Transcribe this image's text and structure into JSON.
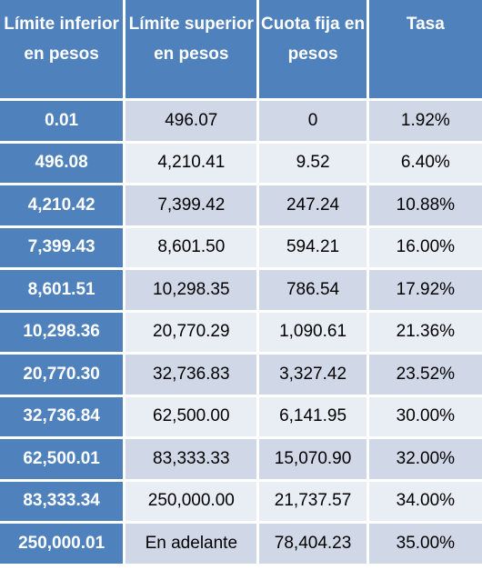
{
  "table": {
    "headers": [
      "Límite inferior en pesos",
      "Límite superior en pesos",
      "Cuota fija en pesos",
      "Tasa"
    ],
    "rows": [
      {
        "inferior": "0.01",
        "superior": "496.07",
        "cuota": "0",
        "tasa": "1.92%"
      },
      {
        "inferior": "496.08",
        "superior": "4,210.41",
        "cuota": "9.52",
        "tasa": "6.40%"
      },
      {
        "inferior": "4,210.42",
        "superior": "7,399.42",
        "cuota": "247.24",
        "tasa": "10.88%"
      },
      {
        "inferior": "7,399.43",
        "superior": "8,601.50",
        "cuota": "594.21",
        "tasa": "16.00%"
      },
      {
        "inferior": "8,601.51",
        "superior": "10,298.35",
        "cuota": "786.54",
        "tasa": "17.92%"
      },
      {
        "inferior": "10,298.36",
        "superior": "20,770.29",
        "cuota": "1,090.61",
        "tasa": "21.36%"
      },
      {
        "inferior": "20,770.30",
        "superior": "32,736.83",
        "cuota": "3,327.42",
        "tasa": "23.52%"
      },
      {
        "inferior": "32,736.84",
        "superior": "62,500.00",
        "cuota": "6,141.95",
        "tasa": "30.00%"
      },
      {
        "inferior": "62,500.01",
        "superior": "83,333.33",
        "cuota": "15,070.90",
        "tasa": "32.00%"
      },
      {
        "inferior": "83,333.34",
        "superior": "250,000.00",
        "cuota": "21,737.57",
        "tasa": "34.00%"
      },
      {
        "inferior": "250,000.01",
        "superior": "En adelante",
        "cuota": "78,404.23",
        "tasa": "35.00%"
      }
    ]
  },
  "colors": {
    "header_bg": "#4f81bd",
    "header_text": "#ffffff",
    "band_dark": "#d0d8e8",
    "band_light": "#e9edf4"
  }
}
